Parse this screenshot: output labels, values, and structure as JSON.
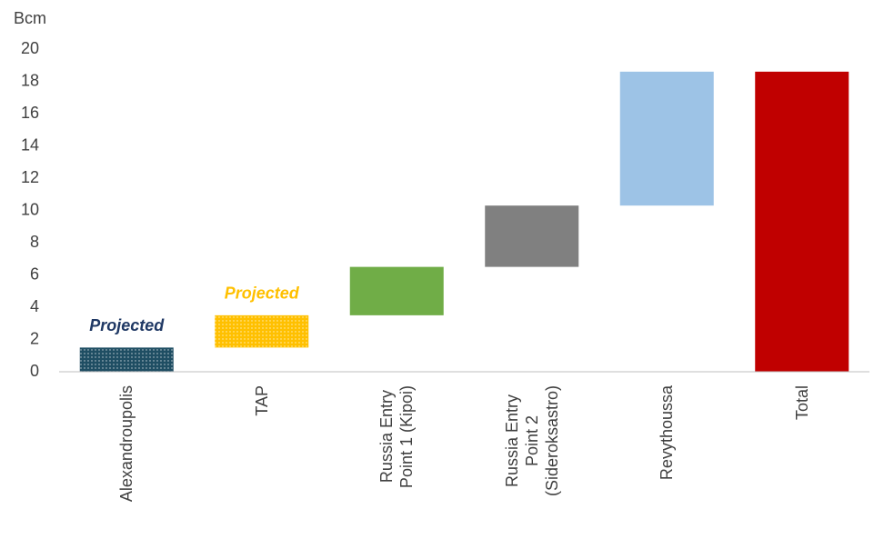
{
  "chart_data": {
    "type": "waterfall",
    "y_label": "Bcm",
    "categories": [
      "Alexandroupolis",
      "TAP",
      "Russia Entry\nPoint 1 (Kipoi)",
      "Russia Entry\nPoint 2\n(Sideroksastro)",
      "Revythoussa",
      "Total"
    ],
    "values": [
      1.5,
      2.0,
      3.0,
      3.8,
      8.3,
      18.6
    ],
    "measures": [
      "relative",
      "relative",
      "relative",
      "relative",
      "relative",
      "total"
    ],
    "colors": [
      "#1f4e63",
      "#ffc000",
      "#70ad47",
      "#808080",
      "#9dc3e6",
      "#c00000"
    ],
    "patterns": [
      "dots",
      "dots",
      null,
      null,
      null,
      null
    ],
    "annotations": [
      {
        "text": "Projected",
        "category": "Alexandroupolis",
        "color": "#1f3864"
      },
      {
        "text": "Projected",
        "category": "TAP",
        "color": "#ffc000"
      }
    ],
    "ylim": [
      0,
      20
    ],
    "yticks": [
      0,
      2,
      4,
      6,
      8,
      10,
      12,
      14,
      16,
      18,
      20
    ],
    "grid": false
  }
}
